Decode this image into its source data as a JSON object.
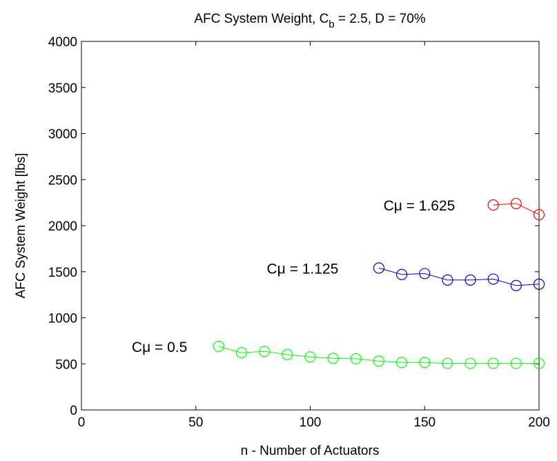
{
  "chart_data": {
    "type": "line",
    "title": {
      "prefix": "AFC System Weight, C",
      "subscript": "b",
      "suffix": " = 2.5, D = 70%"
    },
    "xlabel": "n - Number of Actuators",
    "ylabel": "AFC System Weight [lbs]",
    "xlim": [
      0,
      200
    ],
    "ylim": [
      0,
      4000
    ],
    "xticks": [
      0,
      50,
      100,
      150,
      200
    ],
    "yticks": [
      0,
      500,
      1000,
      1500,
      2000,
      2500,
      3000,
      3500,
      4000
    ],
    "grid": false,
    "marker": "circle",
    "series": [
      {
        "name": "Cμ = 0.5",
        "color": "#00ff00",
        "x": [
          60,
          70,
          80,
          90,
          100,
          110,
          120,
          130,
          140,
          150,
          160,
          170,
          180,
          190,
          200
        ],
        "y": [
          690,
          620,
          635,
          600,
          575,
          560,
          555,
          530,
          515,
          515,
          505,
          505,
          505,
          505,
          505
        ]
      },
      {
        "name": "Cμ = 1.125",
        "color": "#0000cc",
        "x": [
          130,
          140,
          150,
          160,
          170,
          180,
          190,
          200
        ],
        "y": [
          1540,
          1470,
          1480,
          1410,
          1410,
          1420,
          1350,
          1365
        ]
      },
      {
        "name": "Cμ = 1.625",
        "color": "#ff0000",
        "x": [
          180,
          190,
          200
        ],
        "y": [
          2225,
          2240,
          2120
        ]
      }
    ],
    "annotations": [
      {
        "text": "Cμ = 0.5",
        "x": 22,
        "y": 690
      },
      {
        "text": "Cμ = 1.125",
        "x": 81,
        "y": 1540
      },
      {
        "text": "Cμ = 1.625",
        "x": 132,
        "y": 2225
      }
    ]
  }
}
